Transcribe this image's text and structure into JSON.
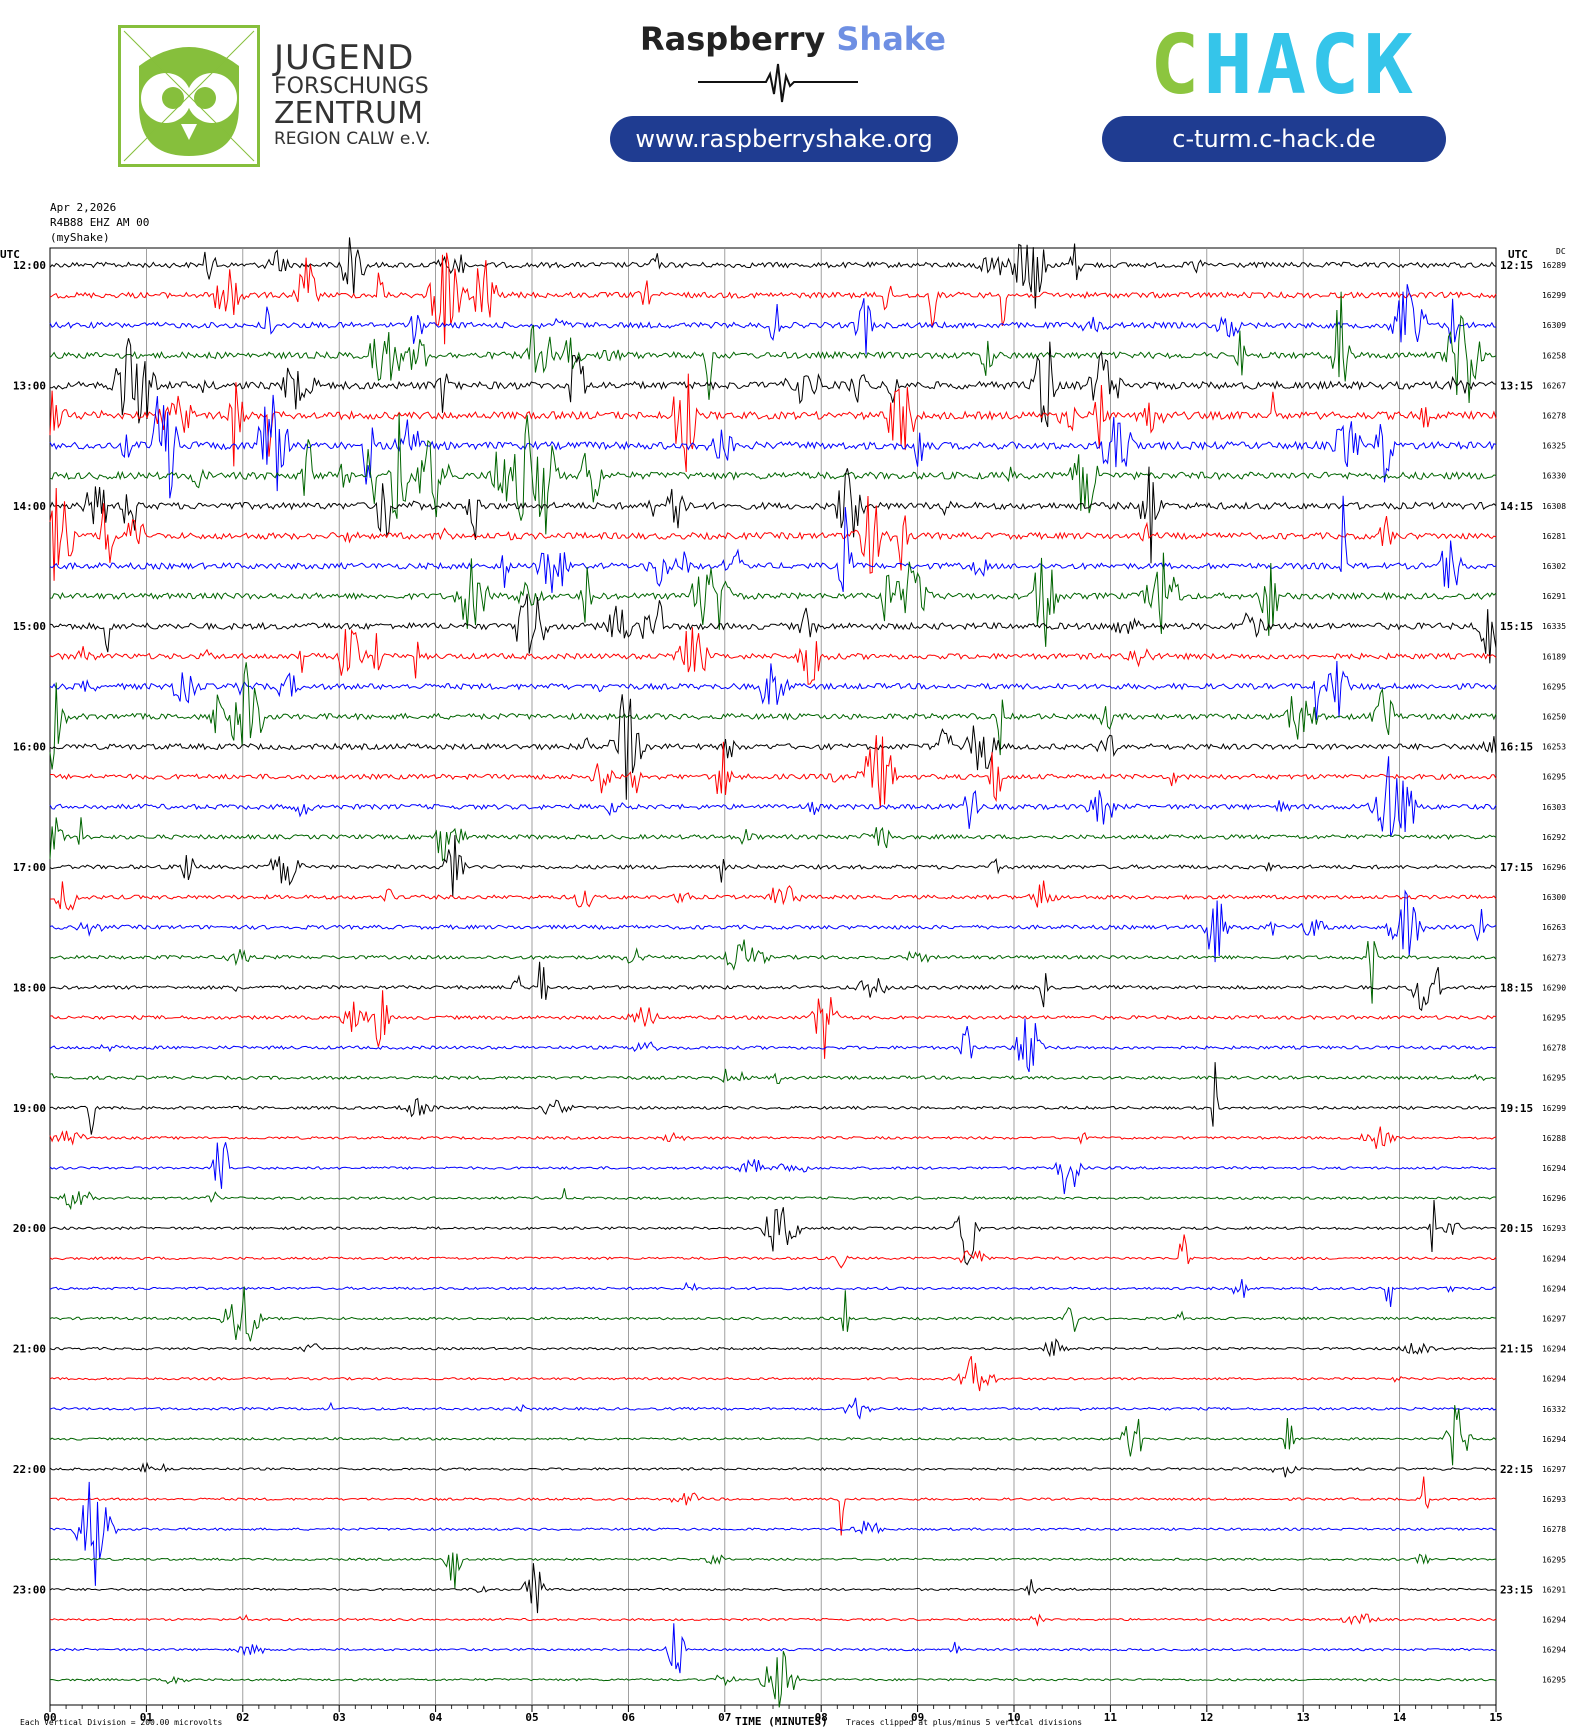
{
  "header": {
    "jugend": {
      "line1": "JUGEND",
      "line2": "FORSCHUNGS",
      "line3": "ZENTRUM",
      "line4": "REGION CALW e.V."
    },
    "rs_word1": "Raspberry",
    "rs_word2": "Shake",
    "rs_url": "www.raspberryshake.org",
    "chack_part1": "C",
    "chack_part2": "HACK",
    "chack_url": "c-turm.c-hack.de",
    "colors": {
      "green": "#8cc53f",
      "cyan": "#35c5ea",
      "navy": "#1f3c91",
      "rs_blue": "#6e8fe3"
    }
  },
  "chart_data": {
    "type": "line",
    "title_date": "Apr 2,2026",
    "station": "R4B88 EHZ AM 00",
    "source": "(myShake)",
    "left_axis_label": "UTC",
    "right_axis_label": "UTC",
    "dc_label": "DC",
    "xlabel": "TIME (MINUTES)",
    "x_ticks": [
      "00",
      "01",
      "02",
      "03",
      "04",
      "05",
      "06",
      "07",
      "08",
      "09",
      "10",
      "11",
      "12",
      "13",
      "14",
      "15"
    ],
    "xlim": [
      0,
      15
    ],
    "left_hour_labels": [
      "12:00",
      "13:00",
      "14:00",
      "15:00",
      "16:00",
      "17:00",
      "18:00",
      "19:00",
      "20:00",
      "21:00",
      "22:00",
      "23:00"
    ],
    "right_hour_labels": [
      "12:15",
      "13:15",
      "14:15",
      "15:15",
      "16:15",
      "17:15",
      "18:15",
      "19:15",
      "20:15",
      "21:15",
      "22:15",
      "23:15"
    ],
    "trace_colors": [
      "#000000",
      "#ff0000",
      "#0000ff",
      "#006400"
    ],
    "dc_offsets": [
      16289,
      16299,
      16309,
      16258,
      16267,
      16278,
      16325,
      16330,
      16308,
      16281,
      16302,
      16291,
      16335,
      16189,
      16295,
      16250,
      16253,
      16295,
      16303,
      16292,
      16296,
      16300,
      16263,
      16273,
      16290,
      16295,
      16278,
      16295,
      16299,
      16288,
      16294,
      16296,
      16293,
      16294,
      16294,
      16297,
      16294,
      16294,
      16332,
      16294,
      16297,
      16293,
      16278,
      16295,
      16291,
      16294,
      16294,
      16295
    ],
    "activity_levels": [
      0.55,
      0.6,
      0.6,
      0.7,
      0.85,
      0.85,
      0.85,
      0.8,
      0.75,
      0.7,
      0.65,
      0.65,
      0.7,
      0.6,
      0.6,
      0.6,
      0.6,
      0.5,
      0.5,
      0.4,
      0.35,
      0.35,
      0.35,
      0.3,
      0.3,
      0.3,
      0.25,
      0.25,
      0.2,
      0.15,
      0.15,
      0.15,
      0.15,
      0.15,
      0.15,
      0.15,
      0.12,
      0.12,
      0.15,
      0.12,
      0.12,
      0.12,
      0.12,
      0.1,
      0.1,
      0.1,
      0.1,
      0.1
    ],
    "footer_left": "Each Vertical Division =  200.00 microvolts",
    "footer_right": "Traces clipped at plus/minus 5 vertical divisions",
    "grid": true
  }
}
